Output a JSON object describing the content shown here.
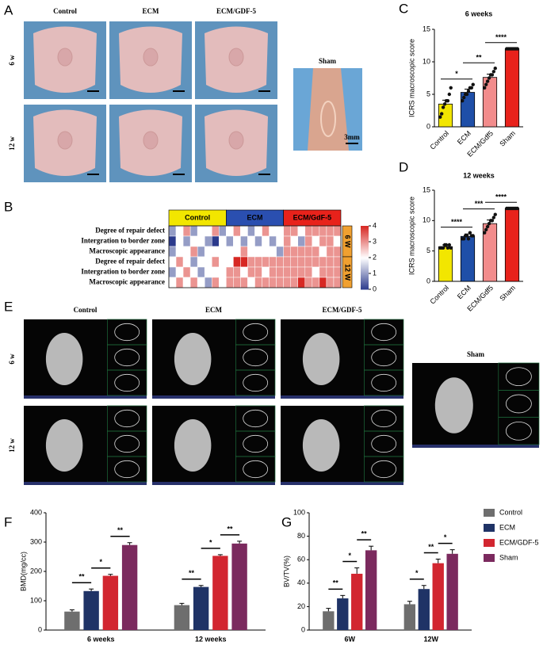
{
  "panels": [
    "A",
    "B",
    "C",
    "D",
    "E",
    "F",
    "G"
  ],
  "photos": {
    "columns": [
      "Control",
      "ECM",
      "ECM/GDF-5"
    ],
    "rows": [
      "6 w",
      "12 w"
    ],
    "sham": "Sham",
    "scale": "3mm"
  },
  "microct": {
    "columns": [
      "Control",
      "ECM",
      "ECM/GDF-5"
    ],
    "rows": [
      "6 w",
      "12 w"
    ],
    "sham": "Sham"
  },
  "chart_data": [
    {
      "type": "bar",
      "title": "6 weeks",
      "ylabel": "ICRS macroscopic score",
      "categories": [
        "Control",
        "ECM",
        "ECM/Gdf5",
        "Sham"
      ],
      "values": [
        3.5,
        5.3,
        7.6,
        12
      ],
      "errors": [
        0.6,
        0.5,
        0.5,
        0.1
      ],
      "colors": [
        "#f2e600",
        "#1f4fa8",
        "#f28c8c",
        "#e8221b"
      ],
      "points": [
        [
          1.5,
          2,
          3,
          3.5,
          4,
          4,
          5,
          6
        ],
        [
          4,
          4.5,
          5,
          5,
          5.5,
          6,
          6,
          6.5
        ],
        [
          6,
          6.5,
          7,
          7.5,
          8,
          8,
          8.5,
          9
        ],
        [
          12,
          12,
          12,
          12,
          12,
          12,
          12,
          12
        ]
      ],
      "annotations": [
        "*",
        "**",
        "****"
      ],
      "ylim": [
        0,
        15
      ],
      "yticks": [
        0,
        5,
        10,
        15
      ]
    },
    {
      "type": "bar",
      "title": "12 weeks",
      "ylabel": "ICRS macroscopic score",
      "categories": [
        "Control",
        "ECM",
        "ECM/Gdf5",
        "Sham"
      ],
      "values": [
        5.7,
        7.4,
        9.5,
        12
      ],
      "errors": [
        0.3,
        0.4,
        0.6,
        0.1
      ],
      "colors": [
        "#f2e600",
        "#1f4fa8",
        "#f28c8c",
        "#e8221b"
      ],
      "points": [
        [
          5.5,
          5.5,
          5.5,
          6,
          6,
          5.5,
          6,
          5.5
        ],
        [
          7,
          7,
          7.5,
          7.5,
          7,
          8,
          7.5,
          7.5
        ],
        [
          8,
          8.5,
          9,
          9.5,
          10,
          10,
          10.5,
          11
        ],
        [
          12,
          12,
          12,
          12,
          12,
          12,
          12,
          12
        ]
      ],
      "annotations": [
        "****",
        "***",
        "****"
      ],
      "ylim": [
        0,
        15
      ],
      "yticks": [
        0,
        5,
        10,
        15
      ]
    },
    {
      "type": "heatmap",
      "groups": [
        "Control",
        "ECM",
        "ECM/GdF-5"
      ],
      "group_colors": [
        "#f2e600",
        "#2a4fb0",
        "#e8221b"
      ],
      "row_labels": [
        "Degree of repair defect",
        "Intergration to border zone",
        "Macroscopic appearance",
        "Degree of repair defect",
        "Intergration to border zone",
        "Macroscopic appearance"
      ],
      "row_groups": [
        "6 W",
        "12 W"
      ],
      "zlim": [
        0,
        4
      ],
      "zticks": [
        0,
        1,
        2,
        3,
        4
      ],
      "values": [
        [
          1,
          2,
          3,
          1,
          2,
          2,
          3,
          1,
          2,
          3,
          2,
          1,
          2,
          3,
          2,
          2,
          3,
          3,
          2,
          3,
          3,
          3,
          3,
          3
        ],
        [
          0,
          2,
          1,
          2,
          2,
          1,
          0,
          2,
          1,
          2,
          1,
          2,
          1,
          2,
          1,
          2,
          3,
          2,
          1,
          3,
          2,
          3,
          3,
          2
        ],
        [
          1,
          2,
          2,
          3,
          1,
          2,
          2,
          2,
          2,
          2,
          3,
          2,
          2,
          2,
          2,
          1,
          3,
          3,
          3,
          3,
          3,
          2,
          3,
          3
        ],
        [
          2,
          3,
          2,
          1,
          2,
          2,
          3,
          2,
          2,
          4,
          4,
          3,
          3,
          3,
          3,
          3,
          3,
          3,
          3,
          3,
          3,
          3,
          3,
          3
        ],
        [
          1,
          2,
          3,
          2,
          1,
          2,
          2,
          2,
          3,
          3,
          2,
          3,
          3,
          2,
          3,
          3,
          3,
          3,
          3,
          3,
          2,
          3,
          3,
          3
        ],
        [
          2,
          3,
          2,
          3,
          2,
          1,
          3,
          2,
          3,
          3,
          3,
          2,
          3,
          3,
          3,
          3,
          3,
          3,
          4,
          3,
          3,
          4,
          3,
          3
        ]
      ]
    },
    {
      "type": "bar",
      "ylabel": "BMD(mg/cc)",
      "categories": [
        "6 weeks",
        "12 weeks"
      ],
      "series": [
        {
          "name": "Control",
          "color": "#6e6e6e",
          "values": [
            63,
            85
          ],
          "errors": [
            6,
            6
          ]
        },
        {
          "name": "ECM",
          "color": "#1f3366",
          "values": [
            133,
            147
          ],
          "errors": [
            7,
            5
          ]
        },
        {
          "name": "ECM/GDF-5",
          "color": "#d22630",
          "values": [
            185,
            253
          ],
          "errors": [
            5,
            4
          ]
        },
        {
          "name": "Sham",
          "color": "#7b2a5e",
          "values": [
            290,
            295
          ],
          "errors": [
            8,
            8
          ]
        }
      ],
      "annotations": [
        [
          "**",
          "*",
          "**"
        ],
        [
          "**",
          "*",
          "**"
        ]
      ],
      "ylim": [
        0,
        400
      ],
      "yticks": [
        0,
        100,
        200,
        300,
        400
      ]
    },
    {
      "type": "bar",
      "ylabel": "BV/TV(%)",
      "categories": [
        "6W",
        "12W"
      ],
      "series": [
        {
          "name": "Control",
          "color": "#6e6e6e",
          "values": [
            16,
            22
          ],
          "errors": [
            2.5,
            2.5
          ]
        },
        {
          "name": "ECM",
          "color": "#1f3366",
          "values": [
            27,
            35
          ],
          "errors": [
            2.5,
            3
          ]
        },
        {
          "name": "ECM/GDF-5",
          "color": "#d22630",
          "values": [
            48,
            57
          ],
          "errors": [
            5,
            3.5
          ]
        },
        {
          "name": "Sham",
          "color": "#7b2a5e",
          "values": [
            68,
            65
          ],
          "errors": [
            3.5,
            3.5
          ]
        }
      ],
      "annotations": [
        [
          "**",
          "*",
          "**"
        ],
        [
          "*",
          "**",
          "*"
        ]
      ],
      "ylim": [
        0,
        100
      ],
      "yticks": [
        0,
        20,
        40,
        60,
        80,
        100
      ],
      "legend": "right"
    }
  ]
}
